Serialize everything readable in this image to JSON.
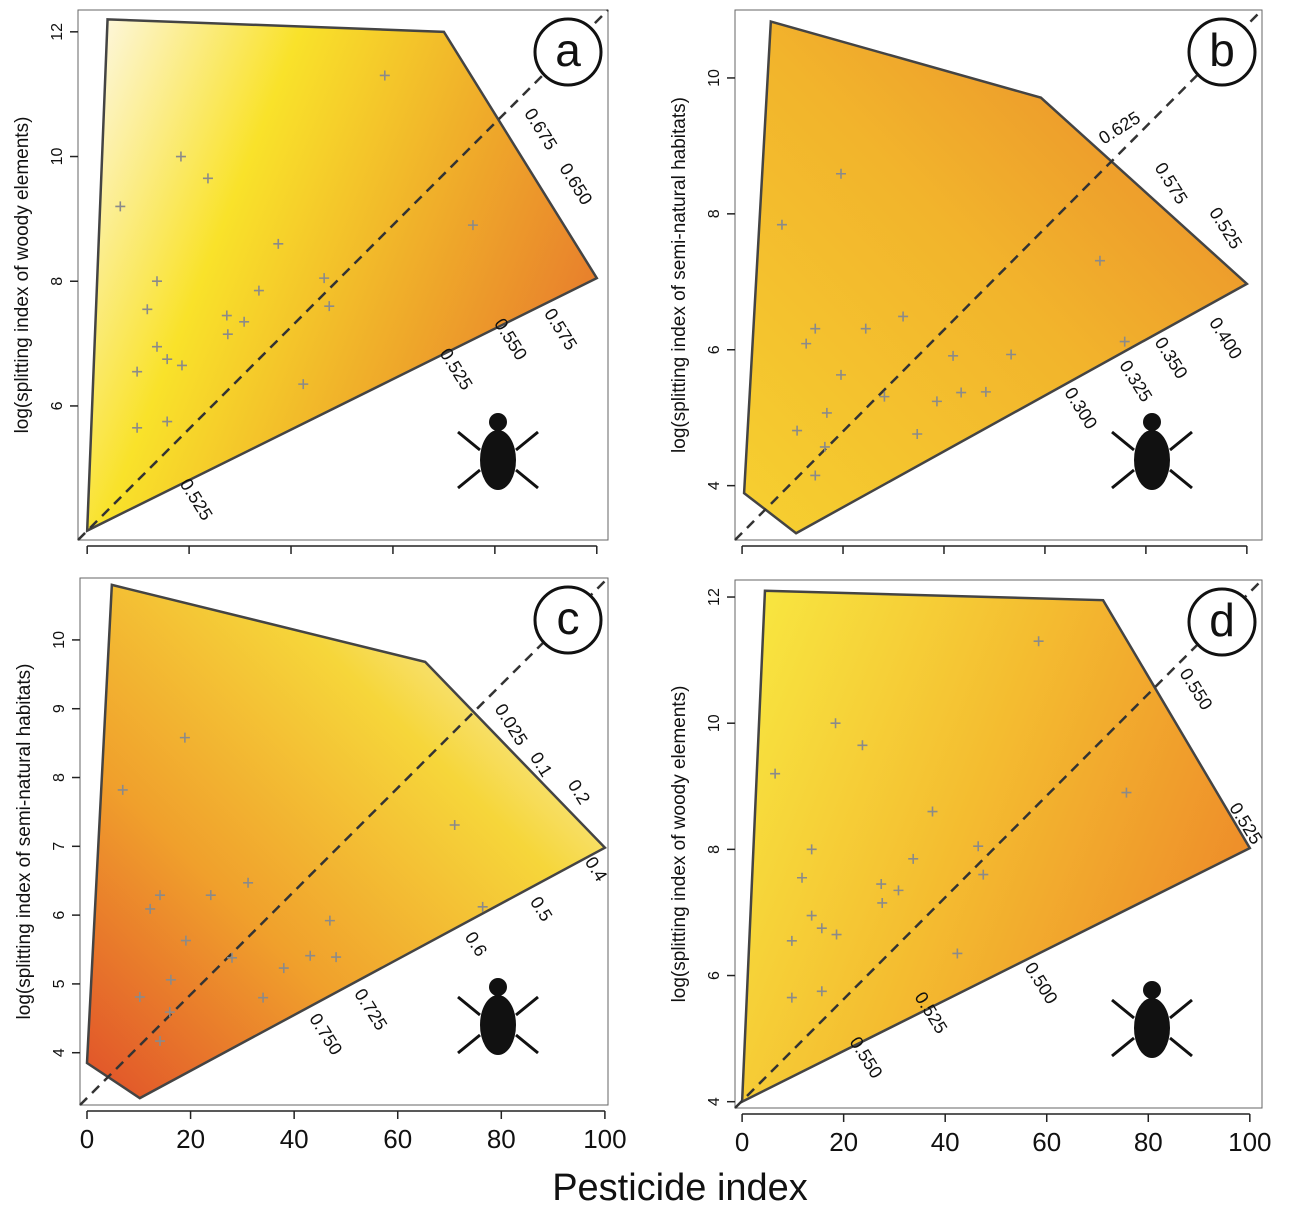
{
  "x_label": "Pesticide index",
  "chart_data": [
    {
      "type": "contour",
      "panel": "a",
      "y_label": "log(splitting index of woody elements)",
      "xlim": [
        -1.8,
        102.2
      ],
      "xticks": [
        0,
        20,
        40,
        60,
        80,
        100
      ],
      "show_xtick_labels": false,
      "ylim": [
        3.85,
        12.35
      ],
      "yticks": [
        6,
        8,
        10,
        12
      ],
      "gradient": {
        "colors": [
          "#fdf6d8",
          "#f9e22a",
          "#f0b02a",
          "#e8802c"
        ],
        "direction": "to-right"
      },
      "hull": {
        "x": [
          4,
          70,
          100,
          0
        ],
        "y": [
          12.2,
          12.0,
          8.05,
          4.0
        ]
      },
      "points": {
        "x": [
          6.5,
          18.4,
          23.7,
          58.4,
          75.7,
          37.5,
          46.5,
          47.5,
          33.7,
          13.7,
          11.8,
          27.4,
          30.8,
          27.6,
          13.7,
          15.7,
          18.6,
          9.8,
          42.4,
          15.7,
          9.8
        ],
        "y": [
          9.2,
          10.0,
          9.65,
          11.3,
          8.9,
          8.6,
          8.05,
          7.6,
          7.85,
          8.0,
          7.55,
          7.45,
          7.35,
          7.15,
          6.95,
          6.75,
          6.65,
          6.55,
          6.35,
          5.75,
          5.65
        ]
      },
      "contour_labels": [
        {
          "value": 0.675,
          "x": 88.8,
          "y": 10.43
        },
        {
          "value": 0.65,
          "label": "0.650",
          "x": 95.7,
          "y": 9.55
        },
        {
          "value": 0.575,
          "x": 92.7,
          "y": 7.22
        },
        {
          "value": 0.55,
          "label": "0.550",
          "x": 82.9,
          "y": 7.06
        },
        {
          "value": 0.525,
          "x": 72.2,
          "y": 6.58
        },
        {
          "value": 0.525,
          "x": 21.2,
          "y": 4.49
        }
      ]
    },
    {
      "type": "contour",
      "panel": "b",
      "y_label": "log(splitting index of semi-natural habitats)",
      "xlim": [
        -1.4,
        103
      ],
      "xticks": [
        0,
        20,
        40,
        60,
        80,
        100
      ],
      "show_xtick_labels": false,
      "ylim": [
        3.2,
        11.0
      ],
      "yticks": [
        4,
        6,
        8,
        10
      ],
      "gradient": {
        "colors": [
          "#f6d030",
          "#f2b42c",
          "#e8862c"
        ],
        "direction": "to-top-right"
      },
      "hull": {
        "x": [
          5.7,
          59.2,
          100,
          10.7,
          0.4
        ],
        "y": [
          10.83,
          9.71,
          6.97,
          3.3,
          3.89
        ]
      },
      "points": {
        "x": [
          7.9,
          19.6,
          70.9,
          14.5,
          12.7,
          24.5,
          31.9,
          19.6,
          41.8,
          53.3,
          16.8,
          38.6,
          43.4,
          48.3,
          28.2,
          10.9,
          34.7,
          14.5,
          16.4,
          75.8
        ],
        "y": [
          7.84,
          8.59,
          7.31,
          6.31,
          6.09,
          6.31,
          6.49,
          5.63,
          5.91,
          5.93,
          5.07,
          5.24,
          5.37,
          5.38,
          5.31,
          4.81,
          4.76,
          4.15,
          4.57,
          6.12
        ]
      },
      "contour_labels": [
        {
          "value": 0.625,
          "x": 74.9,
          "y": 9.25
        },
        {
          "value": 0.575,
          "x": 84.8,
          "y": 8.44
        },
        {
          "value": 0.525,
          "x": 95.6,
          "y": 7.78
        },
        {
          "value": 0.4,
          "label": "0.400",
          "x": 95.6,
          "y": 6.16
        },
        {
          "value": 0.35,
          "label": "0.350",
          "x": 84.8,
          "y": 5.87
        },
        {
          "value": 0.325,
          "x": 77.8,
          "y": 5.53
        },
        {
          "value": 0.3,
          "label": "0.300",
          "x": 66.9,
          "y": 5.13
        }
      ]
    },
    {
      "type": "contour",
      "panel": "c",
      "y_label": "log(splitting index of semi-natural habitats)",
      "xlim": [
        -1.35,
        100.6
      ],
      "xticks": [
        0,
        20,
        40,
        60,
        80,
        100
      ],
      "show_xtick_labels": true,
      "ylim": [
        3.24,
        10.9
      ],
      "yticks": [
        4,
        5,
        6,
        7,
        8,
        9,
        10
      ],
      "gradient": {
        "colors": [
          "#e0502a",
          "#f0a02c",
          "#f6d63a",
          "#fbf9ea"
        ],
        "direction": "to-top-right"
      },
      "hull": {
        "x": [
          4.8,
          65.3,
          100,
          10.2,
          0
        ],
        "y": [
          10.8,
          9.68,
          6.98,
          3.34,
          3.85
        ]
      },
      "points": {
        "x": [
          6.9,
          18.9,
          71.0,
          14.1,
          12.2,
          23.9,
          31.1,
          19.1,
          46.9,
          76.4,
          28.0,
          38.0,
          43.1,
          48.1,
          16.2,
          10.2,
          34.0,
          16.0,
          14.1
        ],
        "y": [
          7.82,
          8.58,
          7.31,
          6.29,
          6.09,
          6.29,
          6.47,
          5.63,
          5.92,
          6.12,
          5.38,
          5.23,
          5.41,
          5.39,
          5.06,
          4.81,
          4.8,
          4.59,
          4.17
        ]
      },
      "contour_labels": [
        {
          "value": 0.025,
          "x": 81.7,
          "y": 8.76
        },
        {
          "value": 0.1,
          "x": 87.5,
          "y": 8.18
        },
        {
          "value": 0.2,
          "x": 94.8,
          "y": 7.78
        },
        {
          "value": 0.4,
          "x": 98.1,
          "y": 6.66
        },
        {
          "value": 0.5,
          "x": 87.5,
          "y": 6.08
        },
        {
          "value": 0.6,
          "x": 74.9,
          "y": 5.57
        },
        {
          "value": 0.725,
          "x": 54.6,
          "y": 4.62
        },
        {
          "value": 0.75,
          "label": "0.750",
          "x": 45.9,
          "y": 4.26
        }
      ]
    },
    {
      "type": "contour",
      "panel": "d",
      "y_label": "log(splitting index of woody elements)",
      "xlim": [
        -1.4,
        102.4
      ],
      "xticks": [
        0,
        20,
        40,
        60,
        80,
        100
      ],
      "show_xtick_labels": true,
      "ylim": [
        3.9,
        12.27
      ],
      "yticks": [
        4,
        6,
        8,
        10,
        12
      ],
      "gradient": {
        "colors": [
          "#f8e640",
          "#f4bc30",
          "#ee8e2a"
        ],
        "direction": "to-right"
      },
      "hull": {
        "x": [
          4.5,
          71.1,
          100,
          0
        ],
        "y": [
          12.1,
          11.95,
          8.02,
          4.0
        ]
      },
      "points": {
        "x": [
          6.5,
          18.4,
          23.7,
          58.4,
          75.7,
          37.5,
          46.5,
          47.5,
          33.7,
          13.7,
          11.8,
          27.4,
          30.8,
          27.6,
          13.7,
          15.7,
          18.6,
          9.8,
          42.4,
          15.7,
          9.8
        ],
        "y": [
          9.2,
          10.0,
          9.65,
          11.3,
          8.9,
          8.6,
          8.05,
          7.6,
          7.85,
          8.0,
          7.55,
          7.45,
          7.35,
          7.15,
          6.95,
          6.75,
          6.65,
          6.55,
          6.35,
          5.75,
          5.65
        ]
      },
      "contour_labels": [
        {
          "value": 0.55,
          "label": "0.550",
          "x": 89.2,
          "y": 10.53
        },
        {
          "value": 0.525,
          "x": 99,
          "y": 8.4
        },
        {
          "value": 0.5,
          "label": "0.500",
          "x": 58.7,
          "y": 5.87
        },
        {
          "value": 0.525,
          "x": 37.0,
          "y": 5.4
        },
        {
          "value": 0.55,
          "label": "0.550",
          "x": 24.2,
          "y": 4.69
        }
      ]
    }
  ]
}
